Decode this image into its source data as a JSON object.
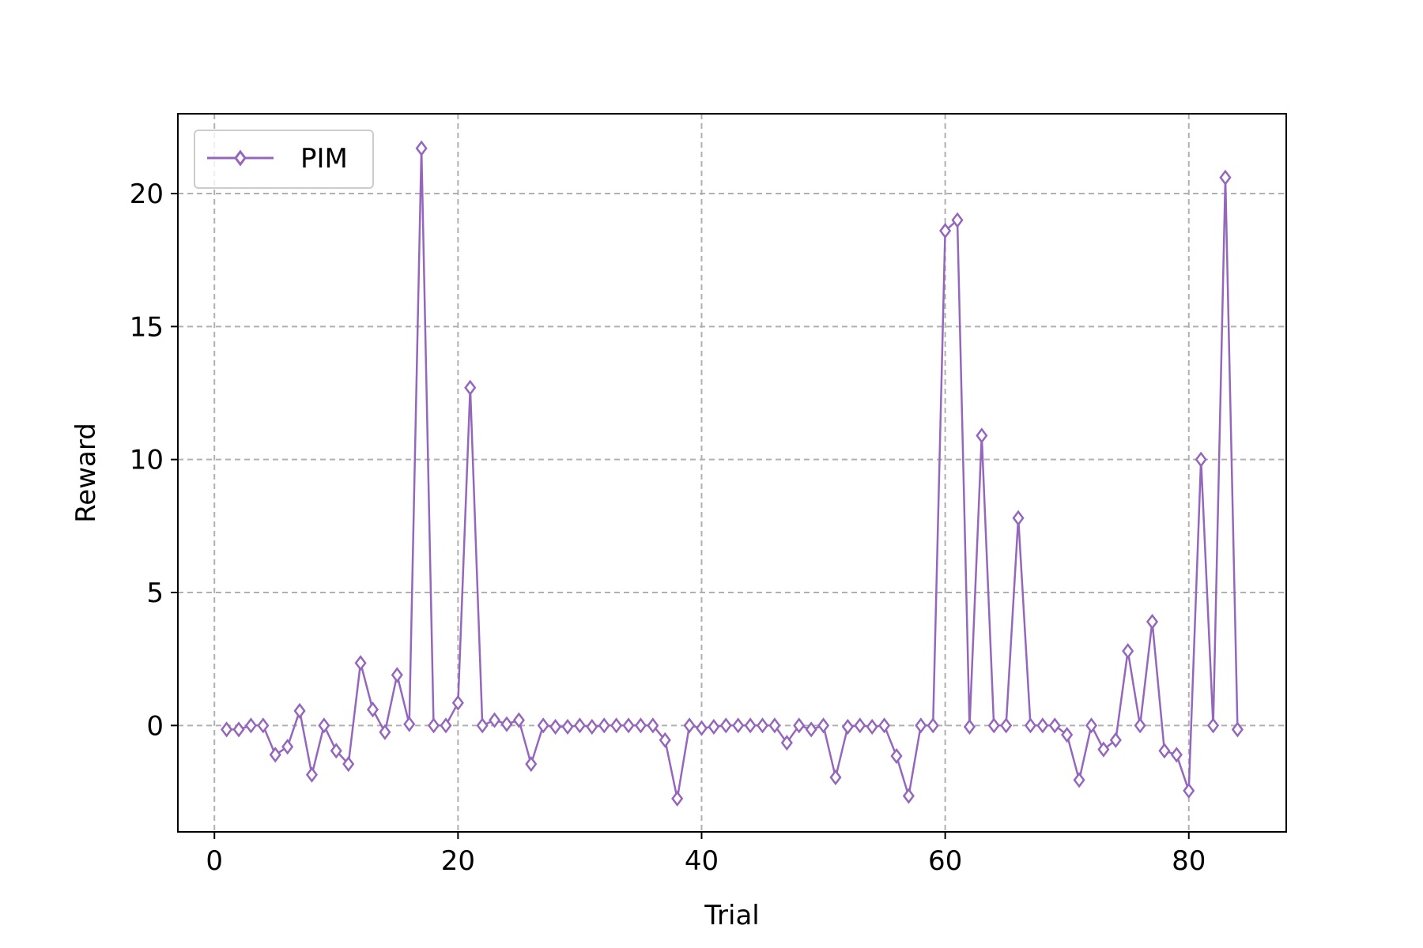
{
  "chart_data": {
    "type": "line",
    "xlabel": "Trial",
    "ylabel": "Reward",
    "xlim": [
      -3,
      88
    ],
    "ylim": [
      -4,
      23
    ],
    "xticks": [
      0,
      20,
      40,
      60,
      80
    ],
    "yticks": [
      0,
      5,
      10,
      15,
      20
    ],
    "grid": true,
    "legend_position": "top-left",
    "series": [
      {
        "name": "PIM",
        "color": "#9467bd",
        "marker": "thin-diamond-open",
        "x": [
          1,
          2,
          3,
          4,
          5,
          6,
          7,
          8,
          9,
          10,
          11,
          12,
          13,
          14,
          15,
          16,
          17,
          18,
          19,
          20,
          21,
          22,
          23,
          24,
          25,
          26,
          27,
          28,
          29,
          30,
          31,
          32,
          33,
          34,
          35,
          36,
          37,
          38,
          39,
          40,
          41,
          42,
          43,
          44,
          45,
          46,
          47,
          48,
          49,
          50,
          51,
          52,
          53,
          54,
          55,
          56,
          57,
          58,
          59,
          60,
          61,
          62,
          63,
          64,
          65,
          66,
          67,
          68,
          69,
          70,
          71,
          72,
          73,
          74,
          75,
          76,
          77,
          78,
          79,
          80,
          81,
          82,
          83,
          84
        ],
        "y": [
          -0.15,
          -0.15,
          0.0,
          0.0,
          -1.1,
          -0.8,
          0.55,
          -1.85,
          0.0,
          -0.95,
          -1.45,
          2.35,
          0.6,
          -0.25,
          1.9,
          0.05,
          21.7,
          0.0,
          0.0,
          0.85,
          12.7,
          0.0,
          0.2,
          0.05,
          0.2,
          -1.45,
          0.0,
          -0.05,
          -0.05,
          0.0,
          -0.05,
          0.0,
          0.0,
          0.0,
          0.0,
          0.0,
          -0.55,
          -2.75,
          0.0,
          -0.1,
          -0.05,
          0.0,
          0.0,
          0.0,
          0.0,
          0.0,
          -0.65,
          0.0,
          -0.15,
          0.0,
          -1.95,
          -0.05,
          0.0,
          -0.05,
          0.0,
          -1.15,
          -2.65,
          0.0,
          0.0,
          18.6,
          19.0,
          -0.05,
          10.9,
          0.0,
          0.0,
          7.8,
          0.0,
          0.0,
          0.0,
          -0.35,
          -2.05,
          0.0,
          -0.9,
          -0.55,
          2.8,
          0.0,
          3.9,
          -0.95,
          -1.1,
          -2.45,
          10.0,
          0.0,
          20.6,
          -0.15
        ]
      }
    ]
  }
}
